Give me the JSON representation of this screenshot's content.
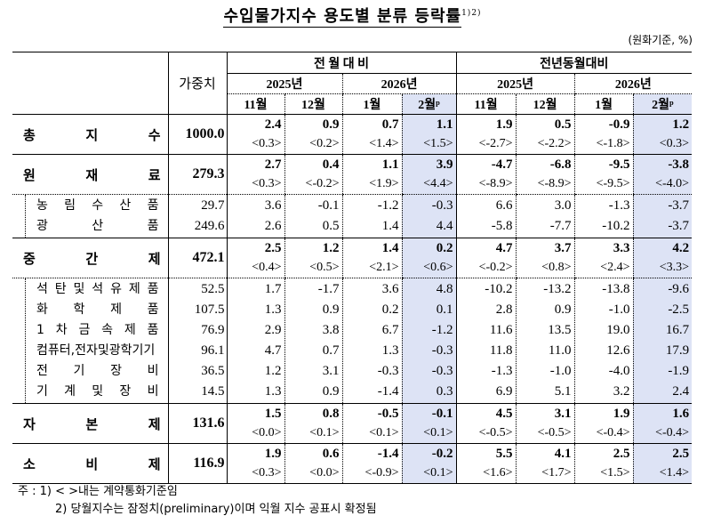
{
  "title": {
    "text": "수입물가지수 용도별 분류 등락률",
    "superscript": "1)2)"
  },
  "unit_label": "(원화기준, %)",
  "header": {
    "weight_label": "가중치",
    "groups": [
      "전 월 대 비",
      "전년동월대비"
    ],
    "years": [
      "2025년",
      "2026년",
      "2025년",
      "2026년"
    ],
    "months": [
      "11월",
      "12월",
      "1월",
      "2월ᵖ",
      "11월",
      "12월",
      "1월",
      "2월ᵖ"
    ]
  },
  "rows": [
    {
      "label": [
        "총",
        "지",
        "수"
      ],
      "weight": "1000.0",
      "values": [
        "2.4",
        "0.9",
        "0.7",
        "1.1",
        "1.9",
        "0.5",
        "-0.9",
        "1.2"
      ],
      "contract": [
        "<0.3>",
        "<0.2>",
        "<1.4>",
        "<1.5>",
        "<-2.7>",
        "<-2.2>",
        "<-1.8>",
        "<0.3>"
      ]
    },
    {
      "label": [
        "원",
        "재",
        "료"
      ],
      "weight": "279.3",
      "values": [
        "2.7",
        "0.4",
        "1.1",
        "3.9",
        "-4.7",
        "-6.8",
        "-9.5",
        "-3.8"
      ],
      "contract": [
        "<0.3>",
        "<-0.2>",
        "<1.9>",
        "<4.4>",
        "<-8.9>",
        "<-8.9>",
        "<-9.5>",
        "<-4.0>"
      ],
      "sub": [
        {
          "label": [
            "농",
            "림",
            "수",
            "산",
            "품"
          ],
          "weight": "29.7",
          "values": [
            "3.6",
            "-0.1",
            "-1.2",
            "-0.3",
            "6.6",
            "3.0",
            "-1.3",
            "-3.7"
          ]
        },
        {
          "label": [
            "광",
            "산",
            "품"
          ],
          "weight": "249.6",
          "values": [
            "2.6",
            "0.5",
            "1.4",
            "4.4",
            "-5.8",
            "-7.7",
            "-10.2",
            "-3.7"
          ]
        }
      ]
    },
    {
      "label": [
        "중",
        "간",
        "제"
      ],
      "weight": "472.1",
      "values": [
        "2.5",
        "1.2",
        "1.4",
        "0.2",
        "4.7",
        "3.7",
        "3.3",
        "4.2"
      ],
      "contract": [
        "<0.4>",
        "<0.5>",
        "<2.1>",
        "<0.6>",
        "<-0.2>",
        "<0.8>",
        "<2.4>",
        "<3.3>"
      ],
      "sub": [
        {
          "label": [
            "석",
            "탄",
            "및",
            "석",
            "유",
            "제",
            "품"
          ],
          "weight": "52.5",
          "values": [
            "1.7",
            "-1.7",
            "3.6",
            "4.8",
            "-10.2",
            "-13.2",
            "-13.8",
            "-9.6"
          ]
        },
        {
          "label": [
            "화",
            "학",
            "제",
            "품"
          ],
          "weight": "107.5",
          "values": [
            "1.3",
            "0.9",
            "0.2",
            "0.1",
            "2.8",
            "0.9",
            "-1.0",
            "-2.5"
          ]
        },
        {
          "label": [
            "1",
            "차",
            "금",
            "속",
            "제",
            "품"
          ],
          "weight": "76.9",
          "values": [
            "2.9",
            "3.8",
            "6.7",
            "-1.2",
            "11.6",
            "13.5",
            "19.0",
            "16.7"
          ]
        },
        {
          "label": [
            "컴퓨터,전자및광학기기"
          ],
          "weight": "96.1",
          "values": [
            "4.7",
            "0.7",
            "1.3",
            "-0.3",
            "11.8",
            "11.0",
            "12.6",
            "17.9"
          ]
        },
        {
          "label": [
            "전",
            "기",
            "장",
            "비"
          ],
          "weight": "36.5",
          "values": [
            "1.2",
            "3.1",
            "-0.3",
            "-0.3",
            "-1.3",
            "-1.0",
            "-4.0",
            "-1.9"
          ]
        },
        {
          "label": [
            "기",
            "계",
            "및",
            "장",
            "비"
          ],
          "weight": "14.5",
          "values": [
            "1.3",
            "0.9",
            "-1.4",
            "0.3",
            "6.9",
            "5.1",
            "3.2",
            "2.4"
          ]
        }
      ]
    },
    {
      "label": [
        "자",
        "본",
        "제"
      ],
      "weight": "131.6",
      "values": [
        "1.5",
        "0.8",
        "-0.5",
        "-0.1",
        "4.5",
        "3.1",
        "1.9",
        "1.6"
      ],
      "contract": [
        "<0.0>",
        "<0.1>",
        "<0.1>",
        "<0.1>",
        "<-0.5>",
        "<-0.5>",
        "<-0.4>",
        "<-0.4>"
      ]
    },
    {
      "label": [
        "소",
        "비",
        "제"
      ],
      "weight": "116.9",
      "values": [
        "1.9",
        "0.6",
        "-1.4",
        "-0.2",
        "5.5",
        "4.1",
        "2.5",
        "2.5"
      ],
      "contract": [
        "<0.3>",
        "<0.0>",
        "<-0.9>",
        "<0.1>",
        "<1.6>",
        "<1.7>",
        "<1.5>",
        "<1.4>"
      ]
    }
  ],
  "notes": {
    "prefix": "주 :",
    "note1": "1) < >내는 계약통화기준임",
    "note2": "2) 당월지수는 잠정치(preliminary)이며 익월 지수 공표시 확정됨"
  },
  "colors": {
    "highlight_column": "#dde3f5",
    "text": "#000000"
  }
}
